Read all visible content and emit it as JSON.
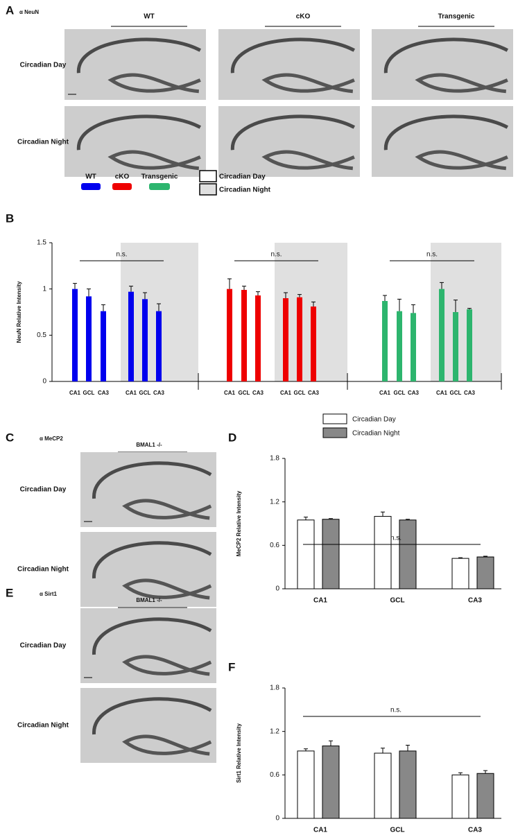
{
  "panel_a": {
    "letter": "A",
    "stain": "α NeuN",
    "columns": [
      "WT",
      "cKO",
      "Transgenic"
    ],
    "rows": [
      "Circadian Day",
      "Circadian Night"
    ]
  },
  "panel_c": {
    "letter": "C",
    "stain": "α MeCP2",
    "genotype": "BMAL1 -/-",
    "rows": [
      "Circadian Day",
      "Circadian Night"
    ]
  },
  "panel_e": {
    "letter": "E",
    "stain": "α Sirt1",
    "genotype": "BMAL1 -/-",
    "rows": [
      "Circadian Day",
      "Circadian Night"
    ]
  },
  "chart_data": [
    {
      "type": "grouped-bar",
      "letter": "B",
      "ylabel": "NeuN Relative Intensity",
      "ylim": [
        0,
        1.5
      ],
      "yticks": [
        0,
        0.5,
        1,
        1.5
      ],
      "categories": [
        "CA1",
        "GCL",
        "CA3"
      ],
      "annotation": "n.s.",
      "periods": [
        {
          "name": "Circadian Day",
          "color": "#ffffff"
        },
        {
          "name": "Circadian Night",
          "color": "#e0e0e0"
        }
      ],
      "groups": [
        {
          "name": "WT",
          "color": "#0000ee",
          "values": [
            [
              1.0,
              0.92,
              0.76
            ],
            [
              0.97,
              0.89,
              0.76
            ]
          ],
          "errors": [
            [
              0.06,
              0.08,
              0.07
            ],
            [
              0.06,
              0.07,
              0.08
            ]
          ]
        },
        {
          "name": "cKO",
          "color": "#ee0000",
          "values": [
            [
              1.0,
              0.99,
              0.93
            ],
            [
              0.9,
              0.91,
              0.81
            ]
          ],
          "errors": [
            [
              0.11,
              0.04,
              0.04
            ],
            [
              0.06,
              0.03,
              0.05
            ]
          ]
        },
        {
          "name": "Transgenic",
          "color": "#2db56e",
          "values": [
            [
              0.87,
              0.76,
              0.74
            ],
            [
              1.0,
              0.75,
              0.78
            ]
          ],
          "errors": [
            [
              0.06,
              0.13,
              0.09
            ],
            [
              0.07,
              0.13,
              0.01
            ]
          ]
        }
      ]
    },
    {
      "type": "bar",
      "letter": "D",
      "ylabel": "MeCP2 Relative Intensity",
      "ylim": [
        0,
        1.8
      ],
      "yticks": [
        0,
        0.6,
        1.2,
        1.8
      ],
      "categories": [
        "CA1",
        "GCL",
        "CA3"
      ],
      "annotation": "n.s.",
      "legend": true,
      "series": [
        {
          "name": "Circadian Day",
          "color": "#ffffff",
          "values": [
            0.95,
            1.0,
            0.42
          ],
          "errors": [
            0.04,
            0.06,
            0.01
          ]
        },
        {
          "name": "Circadian Night",
          "color": "#888888",
          "values": [
            0.96,
            0.95,
            0.44
          ],
          "errors": [
            0.01,
            0.01,
            0.01
          ]
        }
      ]
    },
    {
      "type": "bar",
      "letter": "F",
      "ylabel": "Sirt1 Relative Intensity",
      "ylim": [
        0,
        1.8
      ],
      "yticks": [
        0,
        0.6,
        1.2,
        1.8
      ],
      "categories": [
        "CA1",
        "GCL",
        "CA3"
      ],
      "annotation": "n.s.",
      "legend": false,
      "series": [
        {
          "name": "Circadian Day",
          "color": "#ffffff",
          "values": [
            0.93,
            0.9,
            0.6
          ],
          "errors": [
            0.03,
            0.07,
            0.03
          ]
        },
        {
          "name": "Circadian Night",
          "color": "#888888",
          "values": [
            1.0,
            0.93,
            0.62
          ],
          "errors": [
            0.07,
            0.08,
            0.04
          ]
        }
      ]
    }
  ]
}
